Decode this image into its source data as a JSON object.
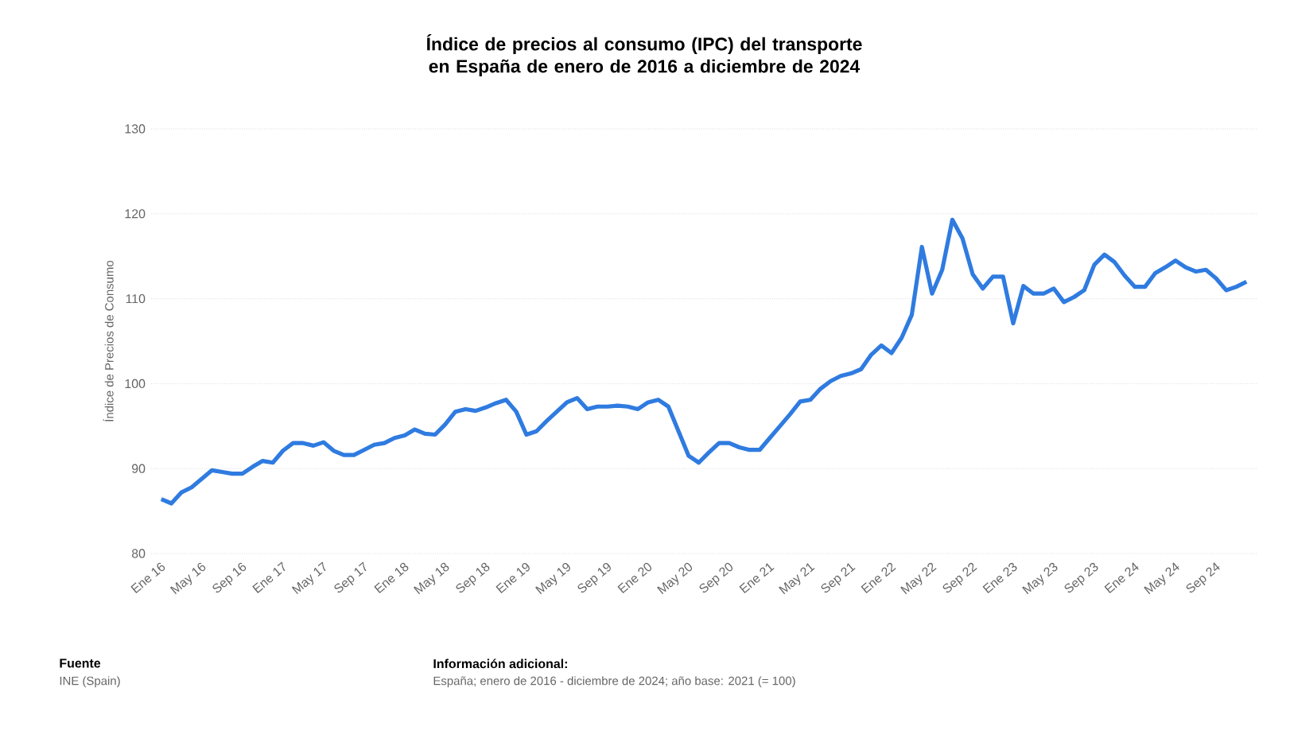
{
  "chart_data": {
    "type": "line",
    "title": "Índice de precios al consumo (IPC) del transporte en España de enero de 2016 a diciembre de 2024",
    "ylabel": "Índice de Precios de Consumo",
    "categories": [
      "Ene 16",
      null,
      null,
      null,
      "May 16",
      null,
      null,
      null,
      "Sep 16",
      null,
      null,
      null,
      "Ene 17",
      null,
      null,
      null,
      "May 17",
      null,
      null,
      null,
      "Sep 17",
      null,
      null,
      null,
      "Ene 18",
      null,
      null,
      null,
      "May 18",
      null,
      null,
      null,
      "Sep 18",
      null,
      null,
      null,
      "Ene 19",
      null,
      null,
      null,
      "May 19",
      null,
      null,
      null,
      "Sep 19",
      null,
      null,
      null,
      "Ene 20",
      null,
      null,
      null,
      "May 20",
      null,
      null,
      null,
      "Sep 20",
      null,
      null,
      null,
      "Ene 21",
      null,
      null,
      null,
      "May 21",
      null,
      null,
      null,
      "Sep 21",
      null,
      null,
      null,
      "Ene 22",
      null,
      null,
      null,
      "May 22",
      null,
      null,
      null,
      "Sep 22",
      null,
      null,
      null,
      "Ene 23",
      null,
      null,
      null,
      "May 23",
      null,
      null,
      null,
      "Sep 23",
      null,
      null,
      null,
      "Ene 24",
      null,
      null,
      null,
      "May 24",
      null,
      null,
      null,
      "Sep 24",
      null,
      null,
      null
    ],
    "values": [
      86.4,
      85.9,
      87.2,
      87.8,
      88.8,
      89.8,
      89.6,
      89.4,
      89.4,
      90.2,
      90.9,
      90.7,
      92.1,
      93.0,
      93.0,
      92.7,
      93.1,
      92.1,
      91.6,
      91.6,
      92.2,
      92.8,
      93.0,
      93.6,
      93.9,
      94.6,
      94.1,
      94.0,
      95.2,
      96.7,
      97.0,
      96.8,
      97.2,
      97.7,
      98.1,
      96.7,
      94.0,
      94.4,
      95.6,
      96.7,
      97.8,
      98.3,
      97.0,
      97.3,
      97.3,
      97.4,
      97.3,
      97.0,
      97.8,
      98.1,
      97.3,
      94.4,
      91.5,
      90.7,
      91.9,
      93.0,
      93.0,
      92.5,
      92.2,
      92.2,
      93.6,
      95.0,
      96.4,
      97.9,
      98.1,
      99.4,
      100.3,
      100.9,
      101.2,
      101.7,
      103.4,
      104.5,
      103.6,
      105.4,
      108.1,
      116.1,
      110.6,
      113.4,
      119.3,
      117.1,
      112.9,
      111.2,
      112.6,
      112.6,
      107.1,
      111.5,
      110.6,
      110.6,
      111.2,
      109.6,
      110.2,
      111.0,
      114.0,
      115.2,
      114.3,
      112.7,
      111.4,
      111.4,
      113.0,
      113.7,
      114.5,
      113.7,
      113.2,
      113.4,
      112.4,
      111.0,
      111.4,
      112.0
    ],
    "color": "#2f7be0",
    "ylim": [
      80,
      130
    ],
    "yticks": [
      80,
      90,
      100,
      110,
      120,
      130
    ],
    "grid": "y",
    "annotations": [
      "Fuente",
      "INE (Spain)",
      "Información adicional:",
      "España; enero de 2016 - diciembre de 2024; año base: 2021 (= 100)"
    ]
  }
}
